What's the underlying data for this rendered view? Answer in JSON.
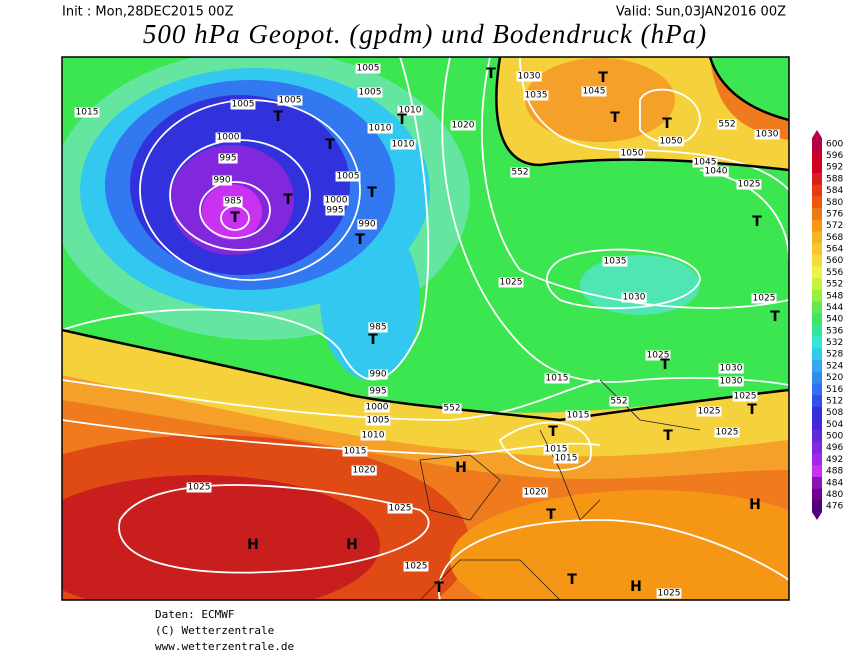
{
  "header": {
    "init": "Init : Mon,28DEC2015 00Z",
    "valid": "Valid: Sun,03JAN2016 00Z",
    "title": "500 hPa Geopot. (gpdm) und Bodendruck (hPa)"
  },
  "map": {
    "isobar_labels": [
      "1015",
      "1005",
      "1005",
      "1005",
      "1000",
      "995",
      "990",
      "985",
      "1005",
      "1010",
      "1010",
      "1010",
      "1005",
      "1000",
      "995",
      "990",
      "985",
      "990",
      "995",
      "1000",
      "1005",
      "1010",
      "1015",
      "1020",
      "1025",
      "1025",
      "1025",
      "1020",
      "1030",
      "1035",
      "1045",
      "1050",
      "1050",
      "1045",
      "1040",
      "1030",
      "1025",
      "1035",
      "1030",
      "1025",
      "1025",
      "1025",
      "1030",
      "1030",
      "1025",
      "1025",
      "1025",
      "1015",
      "1015",
      "1015",
      "1015",
      "1020",
      "1025"
    ],
    "contour_labels": [
      "552",
      "552",
      "552",
      "552"
    ],
    "centers": [
      "T",
      "T",
      "T",
      "T",
      "T",
      "T",
      "T",
      "T",
      "T",
      "T",
      "T",
      "T",
      "T",
      "T",
      "T",
      "T",
      "T",
      "T",
      "T",
      "T",
      "T",
      "H",
      "H",
      "H",
      "H",
      "H"
    ]
  },
  "colorbar": {
    "levels": [
      600,
      596,
      592,
      588,
      584,
      580,
      576,
      572,
      568,
      564,
      560,
      556,
      552,
      548,
      544,
      540,
      536,
      532,
      528,
      524,
      520,
      516,
      512,
      508,
      504,
      500,
      496,
      492,
      488,
      484,
      480,
      476
    ],
    "colors": [
      "#b4004b",
      "#c8002a",
      "#d2001e",
      "#dc1e1e",
      "#e63c14",
      "#eb5a0a",
      "#f07814",
      "#f59614",
      "#f5b428",
      "#f5c832",
      "#f5dc3c",
      "#f0f050",
      "#c8f03c",
      "#96f03c",
      "#64e650",
      "#3ce664",
      "#32e6a0",
      "#32e6dc",
      "#32c8f0",
      "#32aaf0",
      "#328cf0",
      "#3270f0",
      "#3250e6",
      "#3232dc",
      "#4628dc",
      "#6428dc",
      "#8228dc",
      "#a028e6",
      "#c832f0",
      "#8c14b4",
      "#6e0096",
      "#500078"
    ]
  },
  "footer": {
    "source": "Daten: ECMWF",
    "copyright": "(C) Wetterzentrale",
    "url": "www.wetterzentrale.de"
  }
}
